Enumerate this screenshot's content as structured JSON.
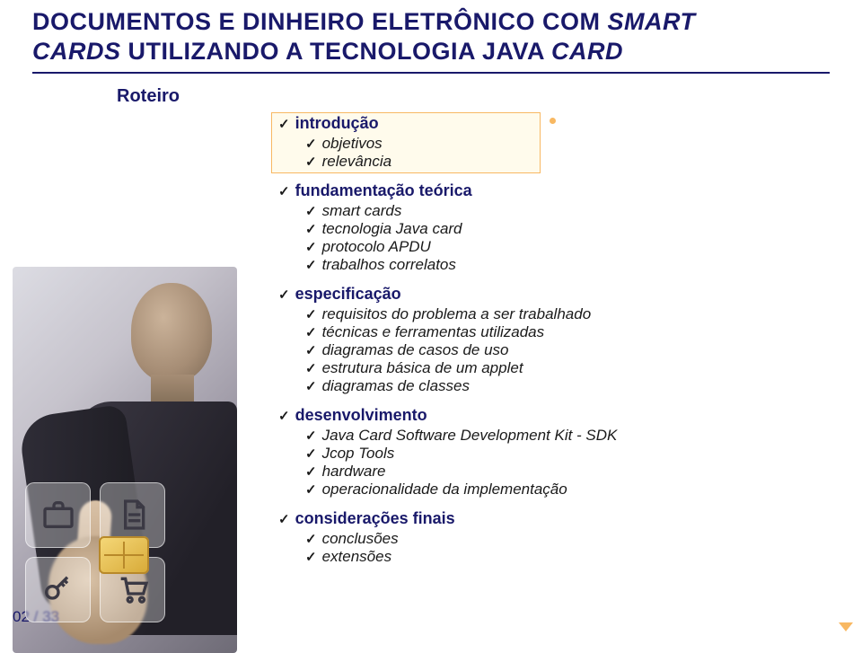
{
  "title_line1_a": "DOCUMENTOS E DINHEIRO ELETRÔNICO COM ",
  "title_line1_b": "SMART",
  "title_line2_a": "CARDS",
  "title_line2_b": " UTILIZANDO A TECNOLOGIA JAVA ",
  "title_line2_c": "CARD",
  "section_label": "Roteiro",
  "page_number": "02 / 33",
  "colors": {
    "heading": "#19196a",
    "highlight_border": "#f8b862",
    "highlight_fill": "#fff7dc",
    "text": "#1a1a1a",
    "background": "#ffffff"
  },
  "outline": [
    {
      "label": "introdução",
      "items": [
        "objetivos",
        "relevância"
      ]
    },
    {
      "label": "fundamentação teórica",
      "items": [
        "smart cards",
        "tecnologia Java card",
        "protocolo APDU",
        "trabalhos correlatos"
      ]
    },
    {
      "label": "especificação",
      "items": [
        "requisitos do problema a ser trabalhado",
        "técnicas e ferramentas utilizadas",
        "diagramas de casos de uso",
        "estrutura básica de um applet",
        "diagramas de classes"
      ]
    },
    {
      "label": "desenvolvimento",
      "items": [
        "Java Card Software Development Kit - SDK",
        "Jcop Tools",
        "hardware",
        "operacionalidade da implementação"
      ]
    },
    {
      "label": "considerações finais",
      "items": [
        "conclusões",
        "extensões"
      ]
    }
  ]
}
